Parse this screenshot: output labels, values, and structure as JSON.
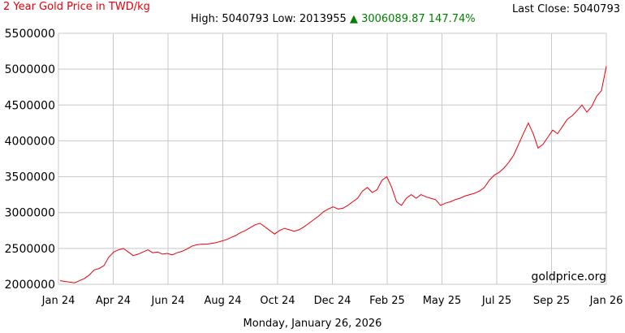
{
  "header": {
    "title": "2 Year Gold Price in TWD/kg",
    "last_close_label": "Last Close:",
    "last_close_value": "5040793",
    "high_label": "High:",
    "high_value": "5040793",
    "low_label": "Low:",
    "low_value": "2013955",
    "change_arrow": "▲",
    "change_value": "3006089.87",
    "change_pct": "147.74%"
  },
  "footer": {
    "date": "Monday, January 26, 2026"
  },
  "watermark": "goldprice.org",
  "colors": {
    "line": "#e8000b",
    "title": "#e8000b",
    "change_up": "#008000",
    "grid": "#c8c8c8"
  },
  "chart_data": {
    "type": "line",
    "title": "2 Year Gold Price in TWD/kg",
    "xlabel": "",
    "ylabel": "",
    "ylim": [
      2000000,
      5500000
    ],
    "y_ticks": [
      "5500000",
      "5000000",
      "4500000",
      "4000000",
      "3500000",
      "3000000",
      "2500000",
      "2000000"
    ],
    "x_ticks": [
      "Jan 24",
      "Apr 24",
      "Jun 24",
      "Aug 24",
      "Oct 24",
      "Dec 24",
      "Feb 25",
      "May 25",
      "Jul 25",
      "Sep 25",
      "Jan 26"
    ],
    "grid": true,
    "legend": "none",
    "series": [
      {
        "values": [
          2050000,
          2040000,
          2030000,
          2020000,
          2050000,
          2080000,
          2130000,
          2200000,
          2220000,
          2260000,
          2380000,
          2450000,
          2480000,
          2500000,
          2450000,
          2400000,
          2420000,
          2450000,
          2480000,
          2440000,
          2450000,
          2420000,
          2430000,
          2410000,
          2440000,
          2460000,
          2490000,
          2530000,
          2550000,
          2560000,
          2560000,
          2570000,
          2580000,
          2600000,
          2620000,
          2650000,
          2680000,
          2720000,
          2750000,
          2790000,
          2830000,
          2850000,
          2800000,
          2750000,
          2700000,
          2750000,
          2780000,
          2760000,
          2740000,
          2760000,
          2800000,
          2850000,
          2900000,
          2950000,
          3010000,
          3050000,
          3080000,
          3050000,
          3060000,
          3100000,
          3150000,
          3200000,
          3300000,
          3350000,
          3280000,
          3320000,
          3450000,
          3500000,
          3350000,
          3150000,
          3100000,
          3200000,
          3250000,
          3200000,
          3250000,
          3220000,
          3200000,
          3180000,
          3100000,
          3130000,
          3150000,
          3180000,
          3200000,
          3230000,
          3250000,
          3270000,
          3300000,
          3350000,
          3450000,
          3520000,
          3560000,
          3620000,
          3700000,
          3800000,
          3950000,
          4100000,
          4250000,
          4100000,
          3900000,
          3950000,
          4050000,
          4150000,
          4100000,
          4200000,
          4300000,
          4350000,
          4420000,
          4500000,
          4400000,
          4480000,
          4620000,
          4700000,
          5040793
        ]
      }
    ]
  }
}
